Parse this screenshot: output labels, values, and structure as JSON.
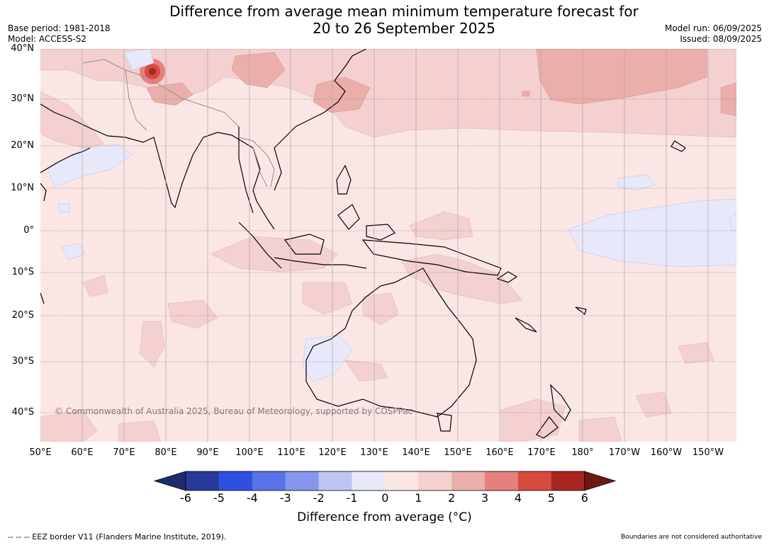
{
  "title": {
    "line1": "Difference from average mean minimum temperature forecast for",
    "line2": "20 to 26 September 2025"
  },
  "meta_left": {
    "base_period": "Base period: 1981-2018",
    "model": "Model: ACCESS-S2"
  },
  "meta_right": {
    "model_run": "Model run: 06/09/2025",
    "issued": "Issued: 08/09/2025"
  },
  "map": {
    "lat_labels": [
      "40°N",
      "30°N",
      "20°N",
      "10°N",
      "0°",
      "10°S",
      "20°S",
      "30°S",
      "40°S"
    ],
    "lon_labels": [
      "50°E",
      "60°E",
      "70°E",
      "80°E",
      "90°E",
      "100°E",
      "110°E",
      "120°E",
      "130°E",
      "140°E",
      "150°E",
      "160°E",
      "170°E",
      "180°",
      "170°W",
      "160°W",
      "150°W"
    ],
    "copyright": "© Commonwealth of Australia 2025, Bureau of Meteorology, supported by COSPPac"
  },
  "colorbar": {
    "ticks": [
      "-6",
      "-5",
      "-4",
      "-3",
      "-2",
      "-1",
      "0",
      "1",
      "2",
      "3",
      "4",
      "5",
      "6"
    ],
    "colors": [
      "#273a9a",
      "#2f4fdf",
      "#5a73e6",
      "#8596ec",
      "#bcc5f3",
      "#e7e9fb",
      "#fbe6e6",
      "#f4d0d0",
      "#eaaeab",
      "#e5817d",
      "#d84a3e",
      "#a8261f"
    ],
    "under_color": "#1e2c6e",
    "over_color": "#6e1814",
    "label": "Difference from average (°C)"
  },
  "footer": {
    "left": "--  --  -- EEZ border V11 (Flanders Marine Institute, 2019).",
    "right": "Boundaries are not considered authoritative"
  }
}
